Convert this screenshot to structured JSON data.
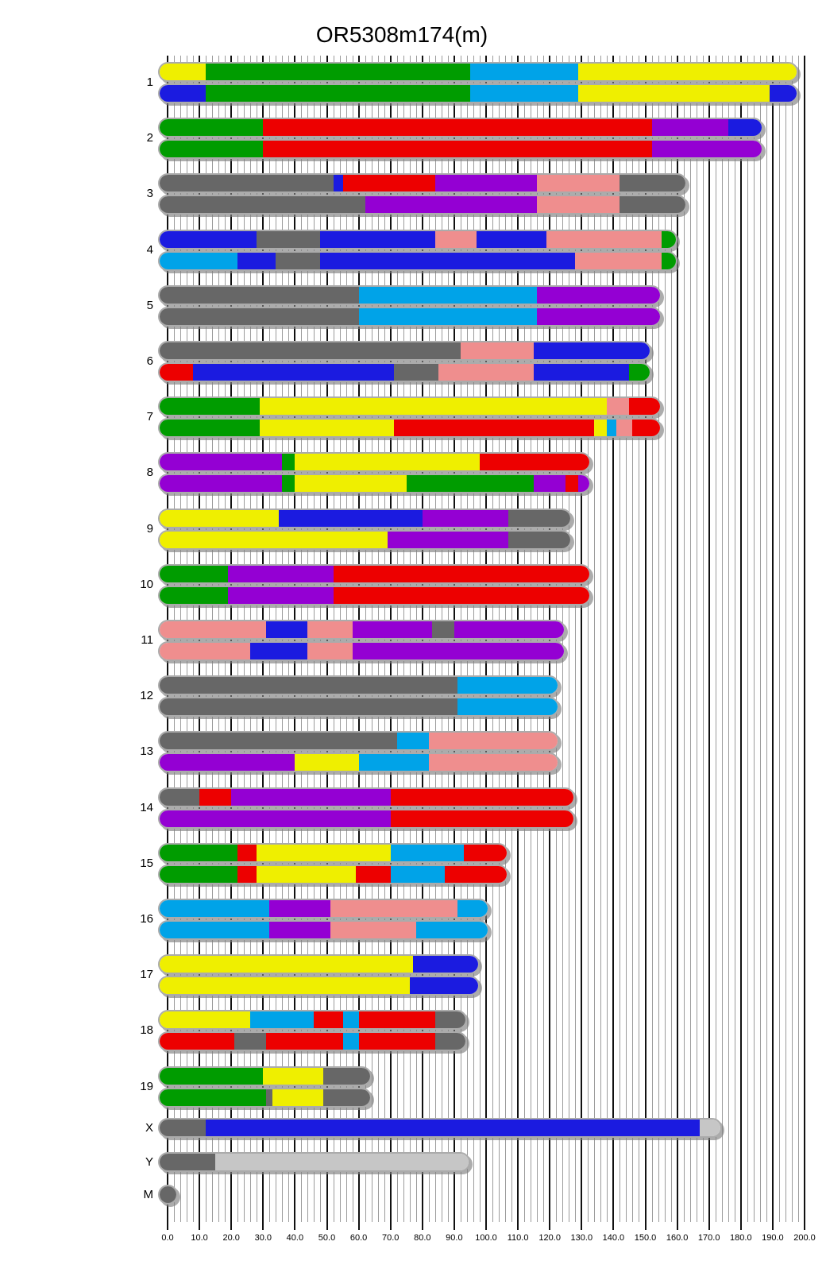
{
  "chart_data": {
    "type": "bar",
    "subtype": "chromosome-ideogram",
    "title": "OR5308m174(m)",
    "xlabel": "",
    "ylabel": "",
    "axis": {
      "min": 0,
      "max": 200,
      "major_step": 10,
      "minor_step": 2,
      "tick_labels": [
        "0.0",
        "10.0",
        "20.0",
        "30.0",
        "40.0",
        "50.0",
        "60.0",
        "70.0",
        "80.0",
        "90.0",
        "100.0",
        "110.0",
        "120.0",
        "130.0",
        "140.0",
        "150.0",
        "160.0",
        "170.0",
        "180.0",
        "190.0",
        "200.0"
      ]
    },
    "palette": {
      "green": "#009c00",
      "yellow": "#efef00",
      "cyan": "#00a3e8",
      "blue": "#1b1be0",
      "red": "#ed0000",
      "purple": "#9400d3",
      "gray": "#676767",
      "pink": "#ef8e8e",
      "lightgray": "#c6c6c6"
    },
    "chromosomes": [
      {
        "label": "1",
        "length": 195,
        "tracks": [
          [
            [
              0,
              12,
              "yellow"
            ],
            [
              12,
              95,
              "green"
            ],
            [
              95,
              129,
              "cyan"
            ],
            [
              129,
              195,
              "yellow"
            ]
          ],
          [
            [
              0,
              12,
              "blue"
            ],
            [
              12,
              95,
              "green"
            ],
            [
              95,
              129,
              "cyan"
            ],
            [
              129,
              189,
              "yellow"
            ],
            [
              189,
              195,
              "blue"
            ]
          ]
        ]
      },
      {
        "label": "2",
        "length": 184,
        "tracks": [
          [
            [
              0,
              30,
              "green"
            ],
            [
              30,
              152,
              "red"
            ],
            [
              152,
              176,
              "purple"
            ],
            [
              176,
              184,
              "blue"
            ]
          ],
          [
            [
              0,
              30,
              "green"
            ],
            [
              30,
              152,
              "red"
            ],
            [
              152,
              184,
              "purple"
            ]
          ]
        ]
      },
      {
        "label": "3",
        "length": 160,
        "tracks": [
          [
            [
              0,
              52,
              "gray"
            ],
            [
              52,
              55,
              "blue"
            ],
            [
              55,
              84,
              "red"
            ],
            [
              84,
              116,
              "purple"
            ],
            [
              116,
              142,
              "pink"
            ],
            [
              142,
              160,
              "gray"
            ]
          ],
          [
            [
              0,
              62,
              "gray"
            ],
            [
              62,
              116,
              "purple"
            ],
            [
              116,
              142,
              "pink"
            ],
            [
              142,
              160,
              "gray"
            ]
          ]
        ]
      },
      {
        "label": "4",
        "length": 157,
        "tracks": [
          [
            [
              0,
              28,
              "blue"
            ],
            [
              28,
              48,
              "gray"
            ],
            [
              48,
              84,
              "blue"
            ],
            [
              84,
              97,
              "pink"
            ],
            [
              97,
              119,
              "blue"
            ],
            [
              119,
              155,
              "pink"
            ],
            [
              155,
              157,
              "green"
            ]
          ],
          [
            [
              0,
              22,
              "cyan"
            ],
            [
              22,
              34,
              "blue"
            ],
            [
              34,
              48,
              "gray"
            ],
            [
              48,
              128,
              "blue"
            ],
            [
              128,
              155,
              "pink"
            ],
            [
              155,
              157,
              "green"
            ]
          ]
        ]
      },
      {
        "label": "5",
        "length": 152,
        "tracks": [
          [
            [
              0,
              60,
              "gray"
            ],
            [
              60,
              116,
              "cyan"
            ],
            [
              116,
              152,
              "purple"
            ]
          ],
          [
            [
              0,
              60,
              "gray"
            ],
            [
              60,
              116,
              "cyan"
            ],
            [
              116,
              152,
              "purple"
            ]
          ]
        ]
      },
      {
        "label": "6",
        "length": 149,
        "tracks": [
          [
            [
              0,
              92,
              "gray"
            ],
            [
              92,
              115,
              "pink"
            ],
            [
              115,
              149,
              "blue"
            ]
          ],
          [
            [
              0,
              8,
              "red"
            ],
            [
              8,
              71,
              "blue"
            ],
            [
              71,
              85,
              "gray"
            ],
            [
              85,
              115,
              "pink"
            ],
            [
              115,
              145,
              "blue"
            ],
            [
              145,
              149,
              "green"
            ]
          ]
        ]
      },
      {
        "label": "7",
        "length": 152,
        "tracks": [
          [
            [
              0,
              29,
              "green"
            ],
            [
              29,
              138,
              "yellow"
            ],
            [
              138,
              145,
              "pink"
            ],
            [
              145,
              152,
              "red"
            ]
          ],
          [
            [
              0,
              29,
              "green"
            ],
            [
              29,
              71,
              "yellow"
            ],
            [
              71,
              134,
              "red"
            ],
            [
              134,
              138,
              "yellow"
            ],
            [
              138,
              141,
              "cyan"
            ],
            [
              141,
              146,
              "pink"
            ],
            [
              146,
              152,
              "red"
            ]
          ]
        ]
      },
      {
        "label": "8",
        "length": 130,
        "tracks": [
          [
            [
              0,
              36,
              "purple"
            ],
            [
              36,
              40,
              "green"
            ],
            [
              40,
              98,
              "yellow"
            ],
            [
              98,
              130,
              "red"
            ]
          ],
          [
            [
              0,
              36,
              "purple"
            ],
            [
              36,
              40,
              "green"
            ],
            [
              40,
              75,
              "yellow"
            ],
            [
              75,
              115,
              "green"
            ],
            [
              115,
              125,
              "purple"
            ],
            [
              125,
              129,
              "red"
            ],
            [
              129,
              130,
              "purple"
            ]
          ]
        ]
      },
      {
        "label": "9",
        "length": 124,
        "tracks": [
          [
            [
              0,
              35,
              "yellow"
            ],
            [
              35,
              80,
              "blue"
            ],
            [
              80,
              107,
              "purple"
            ],
            [
              107,
              124,
              "gray"
            ]
          ],
          [
            [
              0,
              69,
              "yellow"
            ],
            [
              69,
              107,
              "purple"
            ],
            [
              107,
              124,
              "gray"
            ]
          ]
        ]
      },
      {
        "label": "10",
        "length": 130,
        "tracks": [
          [
            [
              0,
              19,
              "green"
            ],
            [
              19,
              52,
              "purple"
            ],
            [
              52,
              130,
              "red"
            ]
          ],
          [
            [
              0,
              19,
              "green"
            ],
            [
              19,
              52,
              "purple"
            ],
            [
              52,
              130,
              "red"
            ]
          ]
        ]
      },
      {
        "label": "11",
        "length": 122,
        "tracks": [
          [
            [
              0,
              31,
              "pink"
            ],
            [
              31,
              44,
              "blue"
            ],
            [
              44,
              58,
              "pink"
            ],
            [
              58,
              83,
              "purple"
            ],
            [
              83,
              90,
              "gray"
            ],
            [
              90,
              122,
              "purple"
            ]
          ],
          [
            [
              0,
              26,
              "pink"
            ],
            [
              26,
              44,
              "blue"
            ],
            [
              44,
              58,
              "pink"
            ],
            [
              58,
              122,
              "purple"
            ]
          ]
        ]
      },
      {
        "label": "12",
        "length": 120,
        "tracks": [
          [
            [
              0,
              91,
              "gray"
            ],
            [
              91,
              120,
              "cyan"
            ]
          ],
          [
            [
              0,
              91,
              "gray"
            ],
            [
              91,
              120,
              "cyan"
            ]
          ]
        ]
      },
      {
        "label": "13",
        "length": 120,
        "tracks": [
          [
            [
              0,
              72,
              "gray"
            ],
            [
              72,
              82,
              "cyan"
            ],
            [
              82,
              120,
              "pink"
            ]
          ],
          [
            [
              0,
              40,
              "purple"
            ],
            [
              40,
              60,
              "yellow"
            ],
            [
              60,
              82,
              "cyan"
            ],
            [
              82,
              120,
              "pink"
            ]
          ]
        ]
      },
      {
        "label": "14",
        "length": 125,
        "tracks": [
          [
            [
              0,
              10,
              "gray"
            ],
            [
              10,
              20,
              "red"
            ],
            [
              20,
              70,
              "purple"
            ],
            [
              70,
              125,
              "red"
            ]
          ],
          [
            [
              0,
              70,
              "purple"
            ],
            [
              70,
              125,
              "red"
            ]
          ]
        ]
      },
      {
        "label": "15",
        "length": 104,
        "tracks": [
          [
            [
              0,
              22,
              "green"
            ],
            [
              22,
              28,
              "red"
            ],
            [
              28,
              70,
              "yellow"
            ],
            [
              70,
              93,
              "cyan"
            ],
            [
              93,
              104,
              "red"
            ]
          ],
          [
            [
              0,
              22,
              "green"
            ],
            [
              22,
              28,
              "red"
            ],
            [
              28,
              59,
              "yellow"
            ],
            [
              59,
              70,
              "red"
            ],
            [
              70,
              87,
              "cyan"
            ],
            [
              87,
              104,
              "red"
            ]
          ]
        ]
      },
      {
        "label": "16",
        "length": 98,
        "tracks": [
          [
            [
              0,
              32,
              "cyan"
            ],
            [
              32,
              51,
              "purple"
            ],
            [
              51,
              91,
              "pink"
            ],
            [
              91,
              98,
              "cyan"
            ]
          ],
          [
            [
              0,
              32,
              "cyan"
            ],
            [
              32,
              51,
              "purple"
            ],
            [
              51,
              78,
              "pink"
            ],
            [
              78,
              98,
              "cyan"
            ]
          ]
        ]
      },
      {
        "label": "17",
        "length": 95,
        "tracks": [
          [
            [
              0,
              77,
              "yellow"
            ],
            [
              77,
              95,
              "blue"
            ]
          ],
          [
            [
              0,
              76,
              "yellow"
            ],
            [
              76,
              95,
              "blue"
            ]
          ]
        ]
      },
      {
        "label": "18",
        "length": 91,
        "tracks": [
          [
            [
              0,
              26,
              "yellow"
            ],
            [
              26,
              46,
              "cyan"
            ],
            [
              46,
              55,
              "red"
            ],
            [
              55,
              60,
              "cyan"
            ],
            [
              60,
              84,
              "red"
            ],
            [
              84,
              91,
              "gray"
            ]
          ],
          [
            [
              0,
              21,
              "red"
            ],
            [
              21,
              31,
              "gray"
            ],
            [
              31,
              55,
              "red"
            ],
            [
              55,
              60,
              "cyan"
            ],
            [
              60,
              84,
              "red"
            ],
            [
              84,
              91,
              "gray"
            ]
          ]
        ]
      },
      {
        "label": "19",
        "length": 61,
        "tracks": [
          [
            [
              0,
              30,
              "green"
            ],
            [
              30,
              49,
              "yellow"
            ],
            [
              49,
              61,
              "gray"
            ]
          ],
          [
            [
              0,
              31,
              "green"
            ],
            [
              31,
              33,
              "gray"
            ],
            [
              33,
              49,
              "yellow"
            ],
            [
              49,
              61,
              "gray"
            ]
          ]
        ]
      },
      {
        "label": "X",
        "length": 171,
        "tracks": [
          [
            [
              0,
              12,
              "gray"
            ],
            [
              12,
              167,
              "blue"
            ],
            [
              167,
              171,
              "lightgray"
            ]
          ]
        ]
      },
      {
        "label": "Y",
        "length": 92,
        "tracks": [
          [
            [
              0,
              15,
              "gray"
            ],
            [
              15,
              92,
              "lightgray"
            ]
          ]
        ]
      },
      {
        "label": "M",
        "length": 0.3,
        "tracks": [
          [
            [
              0,
              0.3,
              "gray"
            ]
          ]
        ]
      }
    ]
  }
}
